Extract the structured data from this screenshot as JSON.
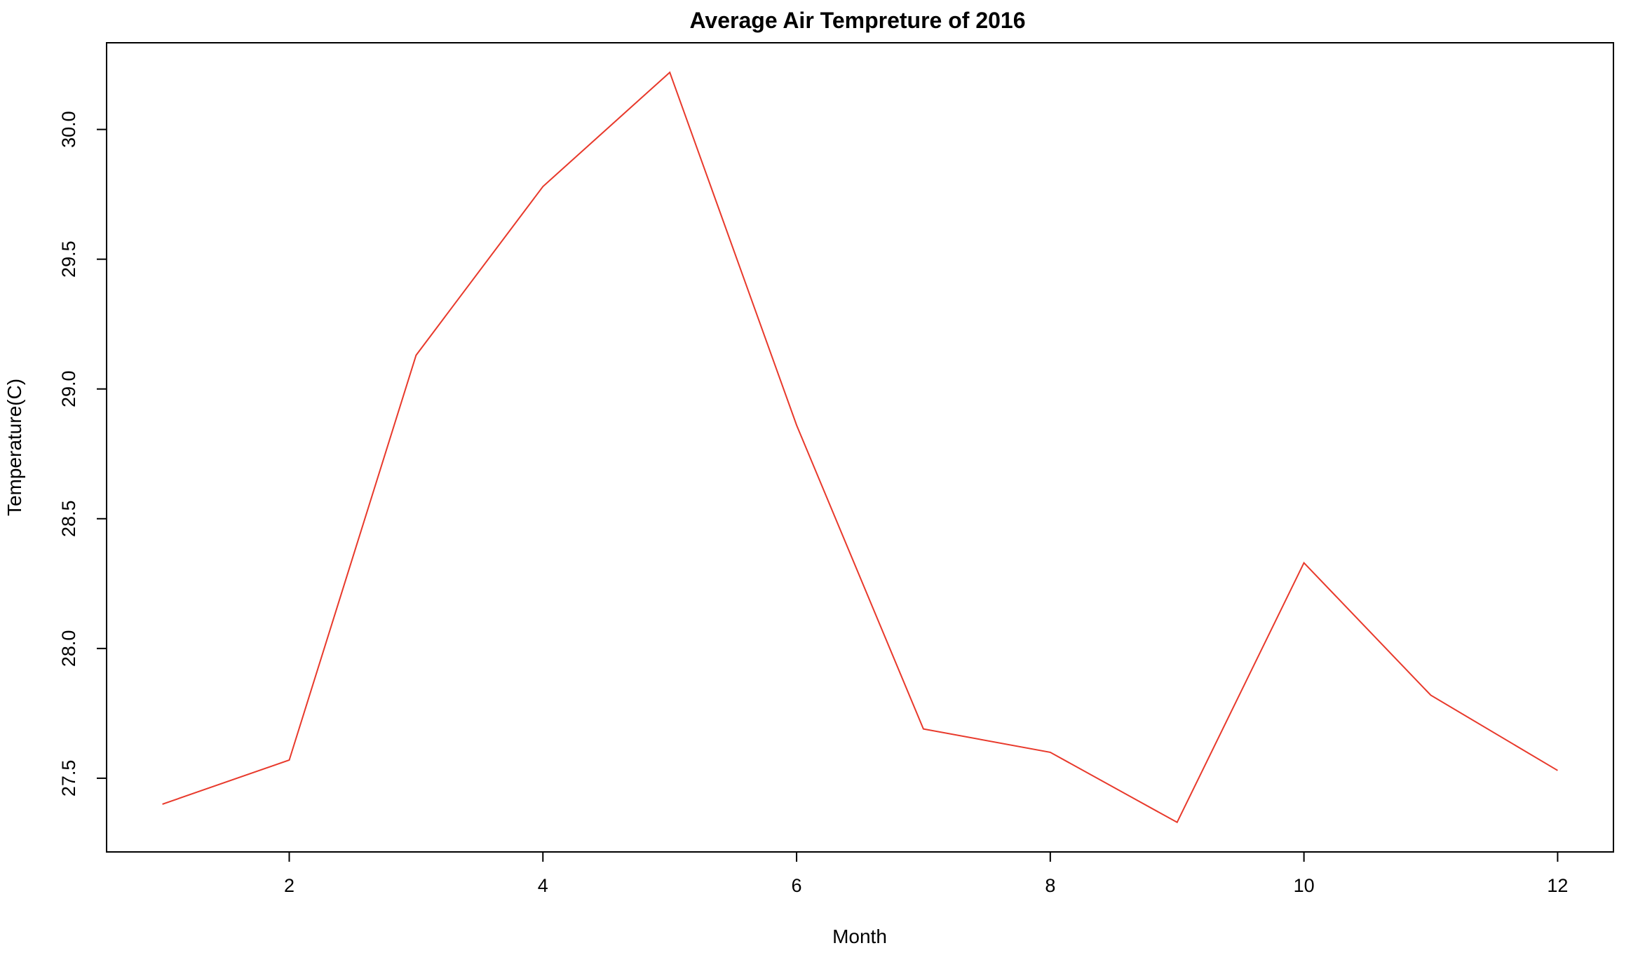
{
  "chart_data": {
    "type": "line",
    "title": "Average Air Tempreture of 2016",
    "xlabel": "Month",
    "ylabel": "Temperature(C)",
    "x": [
      1,
      2,
      3,
      4,
      5,
      6,
      7,
      8,
      9,
      10,
      11,
      12
    ],
    "series": [
      {
        "values": [
          27.4,
          27.57,
          29.13,
          29.78,
          30.22,
          28.86,
          27.69,
          27.6,
          27.33,
          28.33,
          27.82,
          27.53
        ],
        "color": "#e8392b"
      }
    ],
    "xticks": [
      2,
      4,
      6,
      8,
      10,
      12
    ],
    "xtick_labels": [
      "2",
      "4",
      "6",
      "8",
      "10",
      "12"
    ],
    "yticks": [
      27.5,
      28.0,
      28.5,
      29.0,
      29.5,
      30.0
    ],
    "ytick_labels": [
      "27.5",
      "28.0",
      "28.5",
      "29.0",
      "29.5",
      "30.0"
    ],
    "xlim": [
      0.56,
      12.44
    ],
    "ylim": [
      27.216,
      30.334
    ],
    "grid": false,
    "legend": "none"
  }
}
